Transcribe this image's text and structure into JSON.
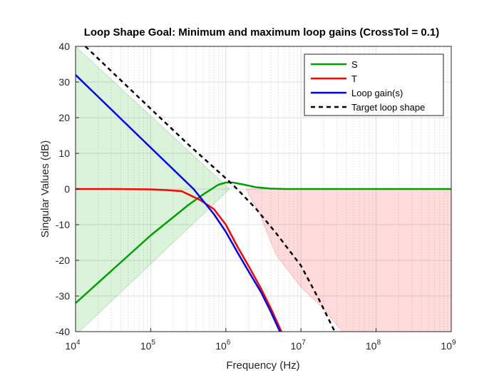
{
  "chart_data": {
    "type": "line",
    "title": "Loop Shape Goal: Minimum and maximum loop gains (CrossTol = 0.1)",
    "xlabel": "Frequency (Hz)",
    "ylabel": "Singular Values (dB)",
    "xscale": "log",
    "xlim": [
      10000,
      1000000000
    ],
    "ylim": [
      -40,
      40
    ],
    "x_ticks": [
      {
        "base": "10",
        "exp": "4"
      },
      {
        "base": "10",
        "exp": "5"
      },
      {
        "base": "10",
        "exp": "6"
      },
      {
        "base": "10",
        "exp": "7"
      },
      {
        "base": "10",
        "exp": "8"
      },
      {
        "base": "10",
        "exp": "9"
      }
    ],
    "y_ticks": [
      "40",
      "30",
      "20",
      "10",
      "0",
      "-10",
      "-20",
      "-30",
      "-40"
    ],
    "grid": true,
    "legend_position": "top-right",
    "series": [
      {
        "name": "S",
        "color": "#00a000",
        "style": "solid",
        "log10_freq": [
          4.0,
          4.5,
          5.0,
          5.5,
          5.7,
          5.9,
          6.0,
          6.1,
          6.2,
          6.4,
          6.6,
          6.8,
          7.5,
          9.0
        ],
        "db": [
          -32,
          -22.5,
          -13,
          -4.5,
          -1.5,
          1.2,
          1.8,
          1.8,
          1.4,
          0.5,
          0.1,
          0,
          0,
          0
        ]
      },
      {
        "name": "T",
        "color": "#ff0000",
        "style": "solid",
        "log10_freq": [
          4.0,
          4.5,
          5.0,
          5.2,
          5.41,
          5.65,
          5.84,
          6.0,
          6.15,
          6.3,
          6.47,
          6.6,
          6.74
        ],
        "db": [
          0,
          0,
          -0.1,
          -0.3,
          -0.6,
          -3,
          -5.6,
          -10,
          -16,
          -21.5,
          -28,
          -33.5,
          -40
        ]
      },
      {
        "name": "Loop gain(s)",
        "color": "#0000ff",
        "style": "solid",
        "log10_freq": [
          4.0,
          4.5,
          5.0,
          5.3,
          5.57,
          5.84,
          6.0,
          6.15,
          6.3,
          6.47,
          6.6,
          6.72
        ],
        "db": [
          32,
          21.8,
          11.6,
          5.5,
          0,
          -7,
          -12,
          -17.6,
          -23,
          -29,
          -34.5,
          -40
        ]
      },
      {
        "name": "Target loop shape",
        "color": "#000000",
        "style": "dashed",
        "log10_freq": [
          4.13,
          5.0,
          5.5,
          6.0,
          6.15,
          6.4,
          6.67,
          7.0,
          7.24,
          7.45
        ],
        "db": [
          40,
          22.5,
          12.5,
          3,
          0,
          -5.5,
          -12.4,
          -21.5,
          -31,
          -40
        ]
      }
    ],
    "shaded_regions": [
      {
        "name": "min-gain-region",
        "color": "#00a000",
        "log10_freq": [
          4.0,
          6.05,
          4.05,
          4.0
        ],
        "db": [
          40,
          0,
          -40,
          -40
        ]
      },
      {
        "name": "max-gain-region",
        "color": "#ff0000",
        "log10_freq": [
          6.27,
          9.0,
          9.0,
          7.55,
          7.3,
          7.0,
          6.67,
          6.45
        ],
        "db": [
          0,
          0,
          -40,
          -40,
          -33.5,
          -27.5,
          -18.5,
          -7
        ]
      }
    ]
  }
}
